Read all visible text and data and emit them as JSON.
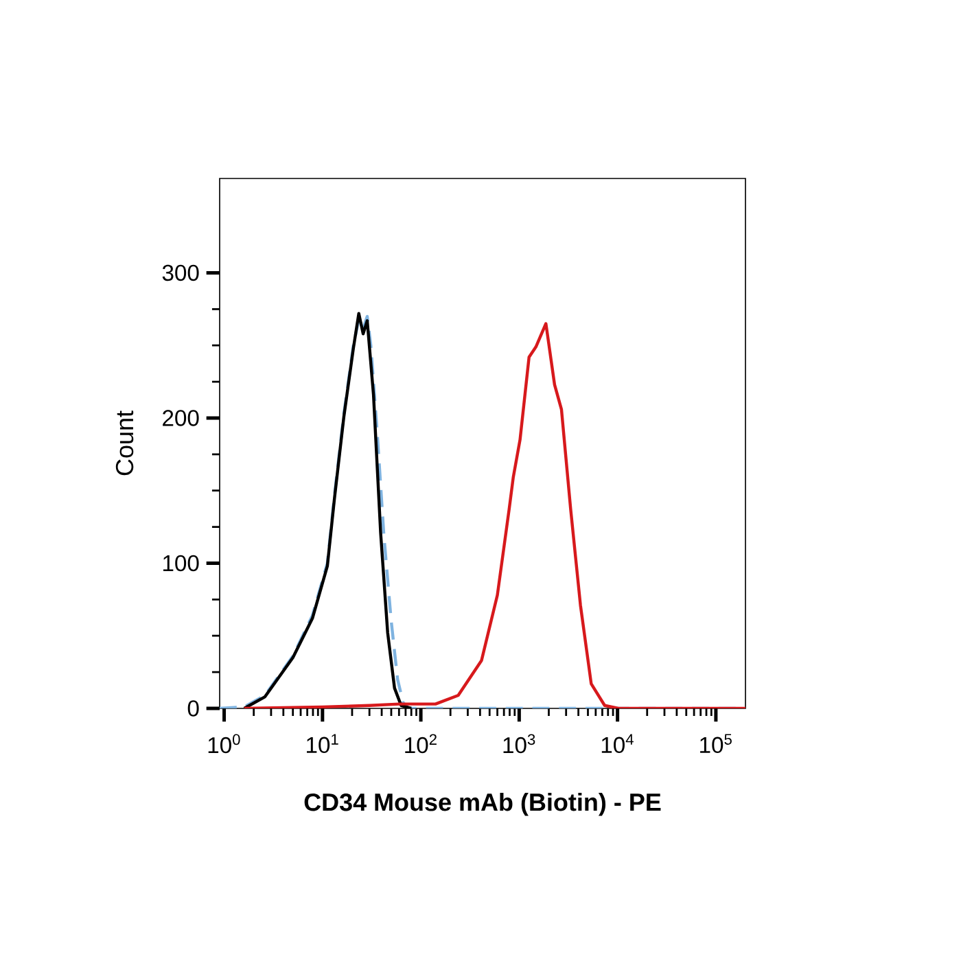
{
  "chart_data": {
    "type": "line",
    "xlabel": "**CD34 Mouse mAb (Biotin) - PE**",
    "ylabel": "Count",
    "log": "x",
    "xlim": [
      0.9,
      200000
    ],
    "ylim": [
      0,
      365
    ],
    "xticks": [
      {
        "value": 1,
        "label": "10$^{0}$"
      },
      {
        "value": 10,
        "label": "10$^{1}$"
      },
      {
        "value": 100,
        "label": "10$^{2}$"
      },
      {
        "value": 1000,
        "label": "10$^{3}$"
      },
      {
        "value": 10000,
        "label": "10$^{4}$"
      },
      {
        "value": 100000,
        "label": "10$^{5}$"
      }
    ],
    "yticks": [
      0,
      100,
      200,
      300
    ],
    "grid": false,
    "series": [
      {
        "color": "#7fb3e0",
        "line_style": "dashed",
        "x": [
          0.9,
          1.6,
          2.6,
          5.0,
          7.9,
          11.2,
          13.2,
          16.5,
          20.6,
          23.4,
          26,
          28.5,
          31,
          36,
          42,
          50,
          58,
          66,
          75,
          200000
        ],
        "values": [
          0,
          1,
          9,
          36,
          64,
          100,
          146,
          203,
          250,
          268,
          262,
          270,
          250,
          190,
          120,
          60,
          20,
          4,
          0,
          0
        ]
      },
      {
        "color": "#000000",
        "line_style": "solid",
        "x": [
          1.6,
          2.6,
          5.0,
          7.9,
          11.2,
          13.2,
          16.5,
          20.6,
          23.4,
          25.9,
          28.5,
          33,
          39,
          46,
          54,
          63,
          80
        ],
        "values": [
          0,
          8,
          35,
          62,
          98,
          144,
          201,
          248,
          272,
          258,
          267,
          216,
          121,
          52,
          14,
          2,
          0
        ]
      },
      {
        "color": "#d7191c",
        "line_style": "solid",
        "x": [
          1.6,
          10,
          30,
          60,
          141,
          240,
          414,
          600,
          790,
          870,
          1020,
          1260,
          1480,
          1870,
          2290,
          2690,
          3340,
          4200,
          5400,
          7400,
          10200,
          200000
        ],
        "values": [
          0,
          1,
          2,
          3,
          3,
          9,
          33,
          78,
          137,
          159,
          185,
          242,
          249,
          265,
          223,
          206,
          137,
          71,
          17,
          2,
          0,
          0
        ]
      }
    ]
  }
}
